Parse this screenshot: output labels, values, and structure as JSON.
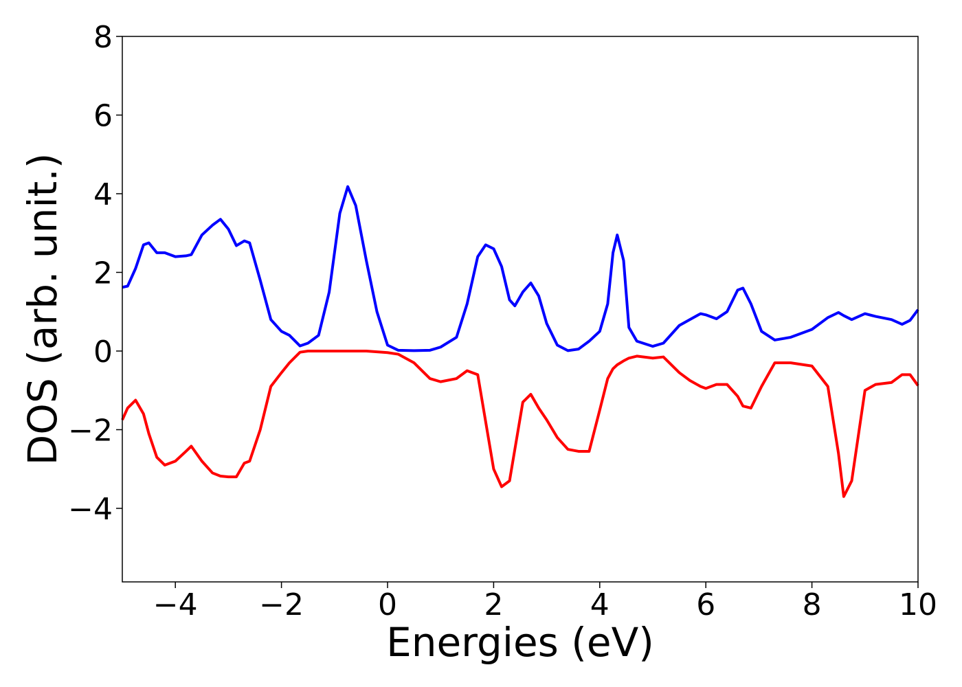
{
  "chart_data": {
    "type": "line",
    "xlabel": "Energies (eV)",
    "ylabel": "DOS (arb. unit.)",
    "x": [
      -5,
      -4.9,
      -4.75,
      -4.6,
      -4.5,
      -4.35,
      -4.2,
      -4.0,
      -3.8,
      -3.7,
      -3.5,
      -3.3,
      -3.15,
      -3.0,
      -2.85,
      -2.7,
      -2.6,
      -2.4,
      -2.2,
      -2.0,
      -1.85,
      -1.65,
      -1.5,
      -1.3,
      -1.1,
      -0.9,
      -0.75,
      -0.6,
      -0.4,
      -0.2,
      0,
      0.2,
      0.5,
      0.8,
      1.0,
      1.3,
      1.5,
      1.7,
      1.85,
      2.0,
      2.15,
      2.3,
      2.4,
      2.55,
      2.7,
      2.85,
      3.0,
      3.2,
      3.4,
      3.6,
      3.8,
      4.0,
      4.15,
      4.25,
      4.33,
      4.45,
      4.55,
      4.7,
      5.0,
      5.2,
      5.5,
      5.7,
      5.9,
      6.0,
      6.2,
      6.4,
      6.6,
      6.7,
      6.85,
      7.05,
      7.3,
      7.6,
      8.0,
      8.3,
      8.5,
      8.6,
      8.75,
      9.0,
      9.2,
      9.5,
      9.7,
      9.85,
      10
    ],
    "series": [
      {
        "color": "#0000ff",
        "values": [
          1.62,
          1.65,
          2.1,
          2.7,
          2.75,
          2.5,
          2.5,
          2.4,
          2.42,
          2.45,
          2.95,
          3.2,
          3.35,
          3.1,
          2.68,
          2.8,
          2.75,
          1.8,
          0.8,
          0.5,
          0.4,
          0.13,
          0.2,
          0.4,
          1.5,
          3.5,
          4.18,
          3.7,
          2.3,
          1.0,
          0.15,
          0.02,
          0.01,
          0.02,
          0.1,
          0.35,
          1.2,
          2.4,
          2.7,
          2.6,
          2.15,
          1.3,
          1.15,
          1.5,
          1.73,
          1.4,
          0.7,
          0.15,
          0.01,
          0.05,
          0.25,
          0.5,
          1.2,
          2.5,
          2.95,
          2.3,
          0.6,
          0.25,
          0.12,
          0.2,
          0.65,
          0.8,
          0.95,
          0.92,
          0.82,
          1.0,
          1.55,
          1.6,
          1.2,
          0.5,
          0.28,
          0.35,
          0.55,
          0.85,
          0.98,
          0.9,
          0.8,
          0.95,
          0.88,
          0.8,
          0.68,
          0.78,
          1.05
        ]
      },
      {
        "color": "#ff0000",
        "values": [
          -1.75,
          -1.45,
          -1.25,
          -1.6,
          -2.1,
          -2.7,
          -2.9,
          -2.8,
          -2.55,
          -2.42,
          -2.8,
          -3.1,
          -3.18,
          -3.2,
          -3.2,
          -2.85,
          -2.8,
          -2.0,
          -0.9,
          -0.55,
          -0.3,
          -0.03,
          0,
          0,
          0,
          0,
          0,
          0,
          0,
          -0.02,
          -0.04,
          -0.08,
          -0.3,
          -0.7,
          -0.78,
          -0.7,
          -0.5,
          -0.6,
          -1.8,
          -3.0,
          -3.45,
          -3.3,
          -2.5,
          -1.3,
          -1.1,
          -1.45,
          -1.75,
          -2.2,
          -2.5,
          -2.55,
          -2.55,
          -1.5,
          -0.7,
          -0.45,
          -0.35,
          -0.25,
          -0.18,
          -0.13,
          -0.18,
          -0.15,
          -0.55,
          -0.75,
          -0.9,
          -0.95,
          -0.85,
          -0.85,
          -1.15,
          -1.4,
          -1.45,
          -0.9,
          -0.3,
          -0.3,
          -0.38,
          -0.9,
          -2.6,
          -3.7,
          -3.3,
          -1.0,
          -0.85,
          -0.8,
          -0.6,
          -0.6,
          -0.88
        ]
      }
    ],
    "xlim": [
      -5,
      10
    ],
    "xticks": [
      {
        "value": -4,
        "label": "−4"
      },
      {
        "value": -2,
        "label": "−2"
      },
      0,
      2,
      4,
      6,
      8,
      10
    ],
    "ylim": [
      -5.87,
      8
    ],
    "yticks": [
      {
        "value": -4,
        "label": "−4"
      },
      {
        "value": -2,
        "label": "−2"
      },
      0,
      2,
      4,
      6,
      8
    ],
    "grid": false
  }
}
